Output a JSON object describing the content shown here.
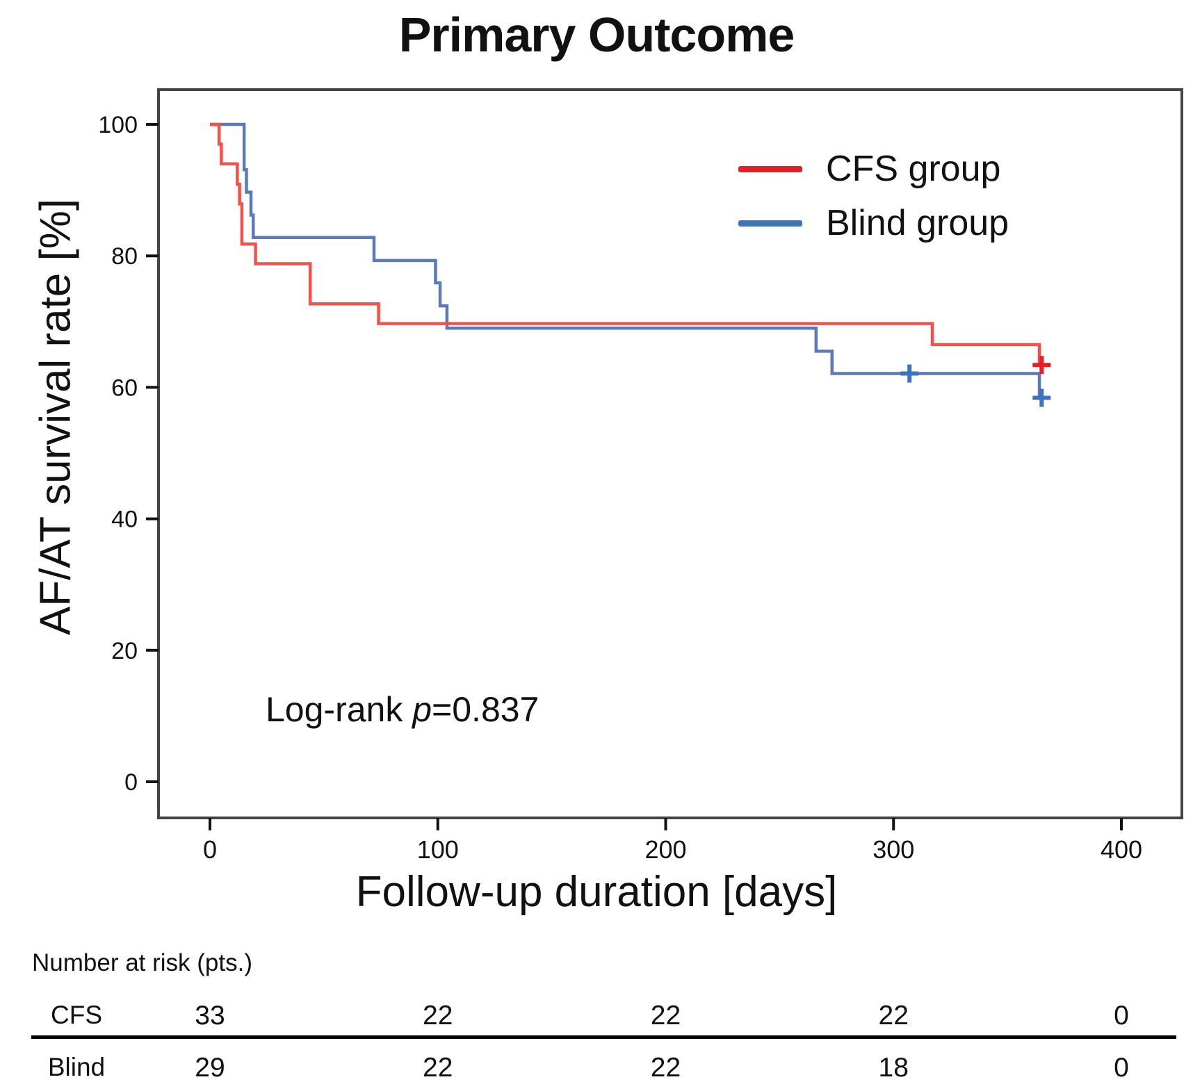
{
  "header": {
    "title": "Primary Outcome"
  },
  "chart_data": {
    "type": "line",
    "subtype": "kaplan-meier-step",
    "title": "Primary Outcome",
    "xlabel": "Follow-up duration [days]",
    "ylabel": "AF/AT survival rate [%]",
    "x_ticks": [
      0,
      100,
      200,
      300,
      400
    ],
    "y_ticks": [
      0,
      20,
      40,
      60,
      80,
      100
    ],
    "xlim": [
      -22,
      430
    ],
    "ylim": [
      -5,
      106
    ],
    "grid": false,
    "legend_position": "top-right-inside",
    "annotation": "Log-rank p=0.837",
    "series": [
      {
        "name": "CFS group",
        "color": "#ec1c24",
        "line_color": "#f6504a",
        "n_at_start": 33,
        "steps": [
          [
            0,
            100
          ],
          [
            4,
            97.0
          ],
          [
            5,
            94.0
          ],
          [
            12,
            90.9
          ],
          [
            13,
            87.9
          ],
          [
            14,
            81.8
          ],
          [
            20,
            78.8
          ],
          [
            44,
            72.7
          ],
          [
            74,
            69.7
          ],
          [
            317,
            66.5
          ],
          [
            364,
            63.4
          ]
        ],
        "end_x": 366,
        "censor_points": [
          [
            365,
            63.4
          ]
        ]
      },
      {
        "name": "Blind group",
        "color": "#3c74bf",
        "line_color": "#5b79bb",
        "n_at_start": 29,
        "steps": [
          [
            0,
            100
          ],
          [
            15,
            93.1
          ],
          [
            16,
            89.7
          ],
          [
            18,
            86.2
          ],
          [
            19,
            82.8
          ],
          [
            72,
            79.3
          ],
          [
            99,
            75.9
          ],
          [
            101,
            72.4
          ],
          [
            104,
            69.0
          ],
          [
            266,
            65.5
          ],
          [
            273,
            62.1
          ],
          [
            364,
            58.4
          ]
        ],
        "end_x": 366,
        "censor_points": [
          [
            307,
            62.1
          ],
          [
            365,
            58.4
          ]
        ]
      }
    ]
  },
  "log_rank": {
    "prefix": "Log-rank ",
    "p": "p",
    "suffix": "=0.837"
  },
  "legend": {
    "items": [
      {
        "label": "CFS group",
        "color": "#ec1c24"
      },
      {
        "label": "Blind group",
        "color": "#3c74bf"
      }
    ]
  },
  "at_risk": {
    "header": "Number at risk (pts.)",
    "time_points": [
      0,
      100,
      200,
      300,
      400
    ],
    "rows": [
      {
        "label": "CFS",
        "values": [
          "33",
          "22",
          "22",
          "22",
          "0"
        ]
      },
      {
        "label": "Blind",
        "values": [
          "29",
          "22",
          "22",
          "18",
          "0"
        ]
      }
    ]
  }
}
